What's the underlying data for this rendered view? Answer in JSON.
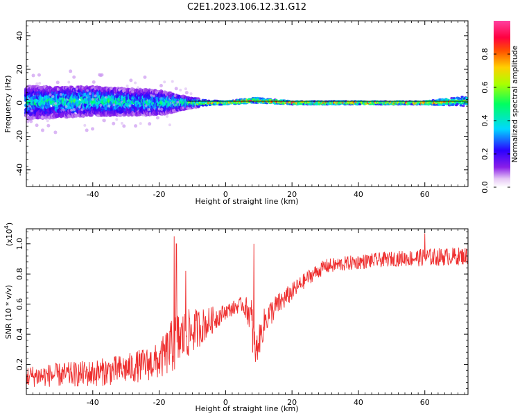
{
  "title": "C2E1.2023.106.12.31.G12",
  "chart_data": [
    {
      "type": "heatmap",
      "xlabel": "Height of straight line (km)",
      "ylabel": "Frequency (Hz)",
      "xlim": [
        -60,
        73
      ],
      "ylim": [
        -50,
        49
      ],
      "xticks": [
        -40,
        -20,
        0,
        20,
        40,
        60
      ],
      "yticks": [
        -40,
        -20,
        0,
        20,
        40
      ],
      "xtick_labels": [
        "-40",
        "-20",
        "0",
        "20",
        "40",
        "60"
      ],
      "ytick_labels": [
        "-40",
        "-20",
        "0",
        "20",
        "40"
      ],
      "colorbar": {
        "label": "Normalized spectral amplitude",
        "range": [
          0,
          1
        ],
        "ticks": [
          0.0,
          0.2,
          0.4,
          0.6,
          0.8
        ],
        "tick_labels": [
          "0.0",
          "0.2",
          "0.4",
          "0.6",
          "0.8"
        ],
        "colormap": "rainbow"
      },
      "description_of_signal": [
        {
          "x": -60,
          "f_center": 0,
          "f_spread": 8,
          "amp": 0.45
        },
        {
          "x": -40,
          "f_center": 1,
          "f_spread": 7,
          "amp": 0.5
        },
        {
          "x": -20,
          "f_center": 0,
          "f_spread": 6,
          "amp": 0.45
        },
        {
          "x": -10,
          "f_center": 0,
          "f_spread": 2,
          "amp": 0.6
        },
        {
          "x": 0,
          "f_center": 0,
          "f_spread": 1,
          "amp": 0.9
        },
        {
          "x": 9,
          "f_center": 1.5,
          "f_spread": 1.5,
          "amp": 0.9
        },
        {
          "x": 20,
          "f_center": 0,
          "f_spread": 1,
          "amp": 0.9
        },
        {
          "x": 60,
          "f_center": 0,
          "f_spread": 1,
          "amp": 0.9
        },
        {
          "x": 73,
          "f_center": 1,
          "f_spread": 3,
          "amp": 0.6
        }
      ],
      "grid": false,
      "legend": "none"
    },
    {
      "type": "line",
      "xlabel": "Height of straight line (km)",
      "ylabel": "SNR (10 * v/v)",
      "y_multiplier_label": "(x10",
      "y_multiplier_exponent": "4",
      "y_multiplier_close": ")",
      "xlim": [
        -60,
        73
      ],
      "ylim": [
        0,
        1.1
      ],
      "xticks": [
        -40,
        -20,
        0,
        20,
        40,
        60
      ],
      "yticks": [
        0.2,
        0.4,
        0.6,
        0.8,
        1.0
      ],
      "xtick_labels": [
        "-40",
        "-20",
        "0",
        "20",
        "40",
        "60"
      ],
      "ytick_labels": [
        "0.2",
        "0.4",
        "0.6",
        "0.8",
        "1.0"
      ],
      "color": "#ee2e2e",
      "grid": false,
      "legend": "none",
      "series": [
        {
          "x": [
            -60,
            -50,
            -40,
            -30,
            -20,
            -15,
            -10,
            -5,
            0,
            5,
            7,
            8,
            9,
            10,
            12,
            15,
            20,
            25,
            30,
            40,
            50,
            60,
            73
          ],
          "values": [
            0.12,
            0.13,
            0.14,
            0.17,
            0.22,
            0.35,
            0.42,
            0.48,
            0.55,
            0.6,
            0.55,
            0.45,
            0.28,
            0.35,
            0.5,
            0.58,
            0.68,
            0.78,
            0.85,
            0.88,
            0.9,
            0.91,
            0.92
          ],
          "noise": [
            0.07,
            0.08,
            0.09,
            0.1,
            0.12,
            0.2,
            0.15,
            0.1,
            0.05,
            0.05,
            0.1,
            0.2,
            0.1,
            0.1,
            0.1,
            0.08,
            0.06,
            0.05,
            0.05,
            0.05,
            0.05,
            0.06,
            0.06
          ],
          "spikes": [
            {
              "x": -15.5,
              "y": 1.05
            },
            {
              "x": -14.8,
              "y": 1.0
            },
            {
              "x": -12,
              "y": 0.82
            },
            {
              "x": 8.5,
              "y": 1.0
            },
            {
              "x": 60,
              "y": 1.07
            }
          ]
        }
      ]
    }
  ]
}
